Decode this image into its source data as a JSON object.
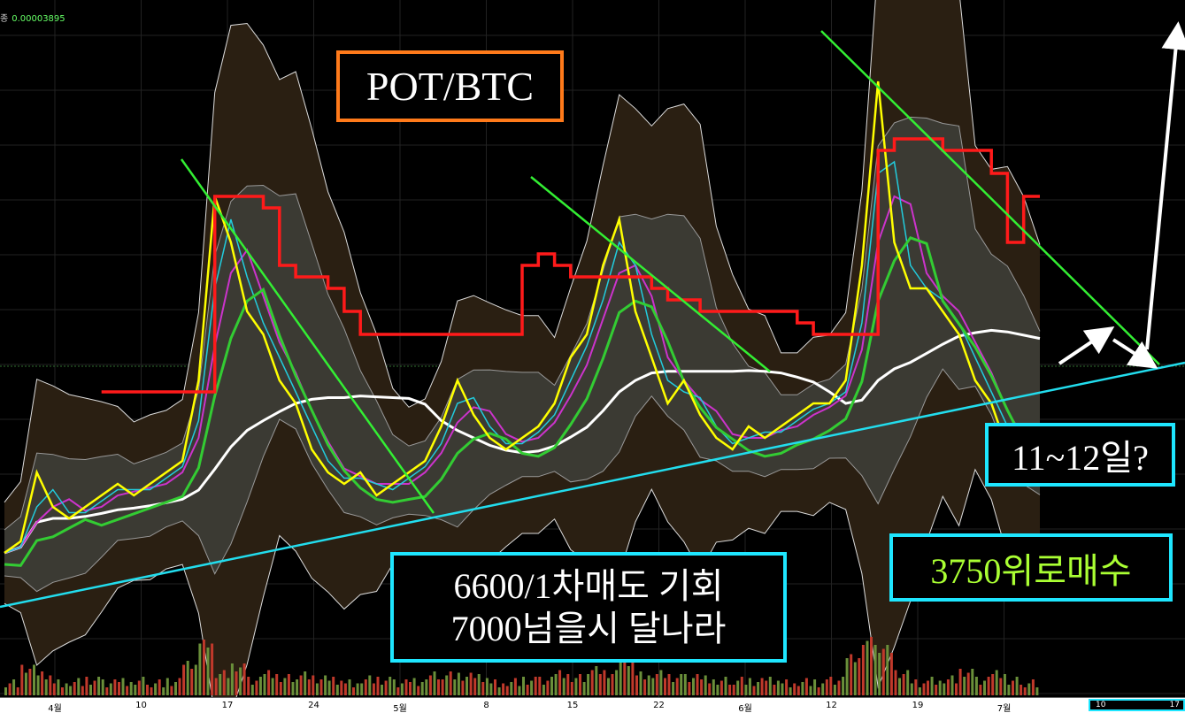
{
  "header": {
    "label": "종",
    "value": "0.00003895"
  },
  "annotations": {
    "title": "POT/BTC",
    "sell_line1": "6600/1차매도 기회",
    "sell_line2": "7000넘을시 달나라",
    "buy": "3750위로매수",
    "date_q": "11~12일?"
  },
  "colors": {
    "price": "#ffff00",
    "mid_band": "#ffffff",
    "trend_support": "#22ddee",
    "trend_down": "#33ee33",
    "resistance": "#ff1a1a",
    "box_orange": "#ff7a1a",
    "box_cyan": "#1ee6ff",
    "arrow": "#ffffff"
  },
  "chart_data": {
    "type": "line",
    "title": "POT/BTC",
    "x_tick_labels": [
      "4월",
      "10",
      "17",
      "24",
      "5월",
      "8",
      "15",
      "22",
      "6월",
      "12",
      "19",
      "7월"
    ],
    "series": [
      {
        "name": "price",
        "values": [
          0.25,
          0.3,
          0.6,
          0.45,
          0.4,
          0.45,
          0.5,
          0.55,
          0.5,
          0.55,
          0.6,
          0.65,
          1.0,
          1.8,
          1.6,
          1.3,
          1.2,
          1.0,
          0.9,
          0.7,
          0.6,
          0.55,
          0.6,
          0.5,
          0.55,
          0.6,
          0.65,
          0.8,
          1.0,
          0.85,
          0.75,
          0.7,
          0.75,
          0.8,
          0.9,
          1.1,
          1.2,
          1.5,
          1.7,
          1.3,
          1.1,
          0.9,
          1.0,
          0.85,
          0.75,
          0.7,
          0.8,
          0.75,
          0.8,
          0.85,
          0.9,
          0.9,
          1.0,
          1.5,
          2.3,
          1.6,
          1.4,
          1.4,
          1.3,
          1.2,
          1.0,
          0.9,
          0.7,
          0.65,
          0.7
        ]
      },
      {
        "name": "resistance",
        "values": [
          null,
          null,
          null,
          null,
          null,
          null,
          0.95,
          0.95,
          0.95,
          0.95,
          0.95,
          0.95,
          0.95,
          1.8,
          1.8,
          1.8,
          1.75,
          1.5,
          1.45,
          1.45,
          1.4,
          1.3,
          1.2,
          1.2,
          1.2,
          1.2,
          1.2,
          1.2,
          1.2,
          1.2,
          1.2,
          1.2,
          1.5,
          1.55,
          1.5,
          1.45,
          1.45,
          1.45,
          1.45,
          1.45,
          1.4,
          1.35,
          1.35,
          1.3,
          1.3,
          1.3,
          1.3,
          1.3,
          1.3,
          1.25,
          1.2,
          1.2,
          1.2,
          1.2,
          2.0,
          2.05,
          2.05,
          2.05,
          2.0,
          2.0,
          2.0,
          1.9,
          1.6,
          1.8,
          1.8
        ]
      }
    ],
    "grid": true,
    "legend": "none"
  }
}
